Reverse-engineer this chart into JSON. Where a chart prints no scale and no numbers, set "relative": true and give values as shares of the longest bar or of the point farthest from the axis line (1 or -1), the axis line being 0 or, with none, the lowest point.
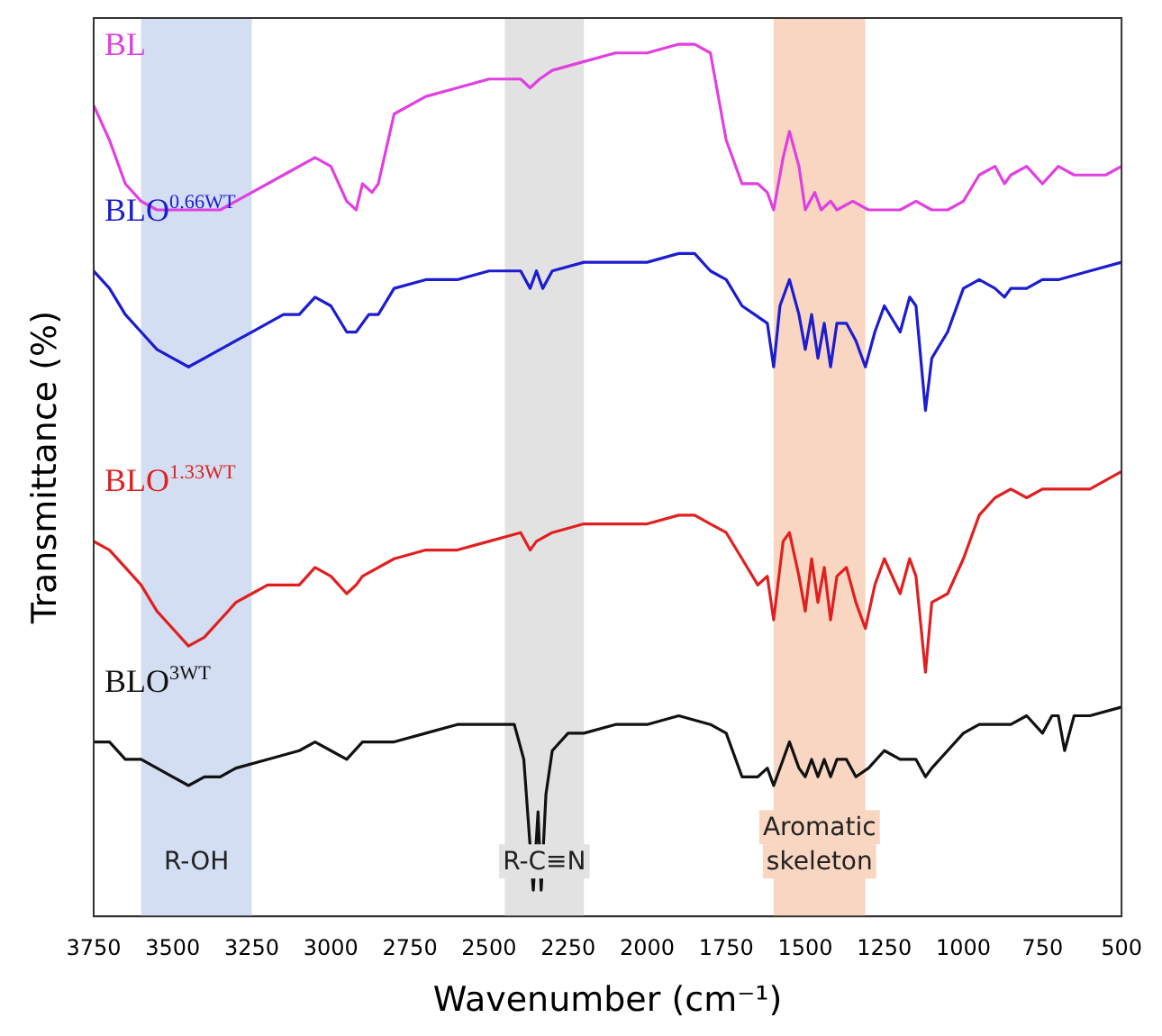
{
  "chart_data": {
    "type": "line",
    "xlabel": "Wavenumber (cm⁻¹)",
    "ylabel": "Transmittance (%)",
    "relative": true,
    "marker": "none",
    "xlim": [
      3750,
      500
    ],
    "xticks": [
      3750,
      3500,
      3250,
      3000,
      2750,
      2500,
      2250,
      2000,
      1750,
      1500,
      1250,
      1000,
      750,
      500
    ],
    "bands": [
      {
        "axis": "x",
        "from": 3600,
        "to": 3250,
        "label": "R-OH",
        "color": "#d3def2"
      },
      {
        "axis": "x",
        "from": 2450,
        "to": 2200,
        "label": "R-C≡N",
        "color": "#e2e2e2"
      },
      {
        "axis": "x",
        "from": 1600,
        "to": 1310,
        "label": "Aromatic skeleton",
        "color": "#f8d6c2"
      }
    ],
    "series": [
      {
        "name": "BL",
        "color": "#e040e0",
        "x": [
          3750,
          3700,
          3650,
          3600,
          3550,
          3450,
          3350,
          3250,
          3150,
          3050,
          3000,
          2950,
          2920,
          2900,
          2870,
          2850,
          2800,
          2700,
          2600,
          2500,
          2400,
          2370,
          2340,
          2300,
          2200,
          2100,
          2000,
          1900,
          1850,
          1800,
          1750,
          1700,
          1650,
          1620,
          1600,
          1570,
          1550,
          1520,
          1500,
          1470,
          1450,
          1420,
          1400,
          1350,
          1300,
          1200,
          1150,
          1100,
          1050,
          1000,
          950,
          900,
          870,
          850,
          800,
          750,
          700,
          650,
          600,
          550,
          500
        ],
        "values": [
          0.93,
          0.89,
          0.84,
          0.82,
          0.81,
          0.81,
          0.81,
          0.83,
          0.85,
          0.87,
          0.86,
          0.82,
          0.81,
          0.84,
          0.83,
          0.84,
          0.92,
          0.94,
          0.95,
          0.96,
          0.96,
          0.95,
          0.96,
          0.97,
          0.98,
          0.99,
          0.99,
          1.0,
          1.0,
          0.99,
          0.89,
          0.84,
          0.84,
          0.83,
          0.81,
          0.87,
          0.9,
          0.86,
          0.81,
          0.83,
          0.81,
          0.82,
          0.81,
          0.82,
          0.81,
          0.81,
          0.82,
          0.81,
          0.81,
          0.82,
          0.85,
          0.86,
          0.84,
          0.85,
          0.86,
          0.84,
          0.86,
          0.85,
          0.85,
          0.85,
          0.86
        ]
      },
      {
        "name": "BLO$^{0.66WT}$",
        "color": "#1c1cd0",
        "x": [
          3750,
          3700,
          3650,
          3600,
          3550,
          3500,
          3450,
          3400,
          3350,
          3300,
          3250,
          3200,
          3150,
          3100,
          3050,
          3000,
          2950,
          2920,
          2880,
          2850,
          2800,
          2700,
          2600,
          2500,
          2450,
          2400,
          2370,
          2350,
          2330,
          2300,
          2200,
          2100,
          2000,
          1900,
          1850,
          1800,
          1750,
          1700,
          1660,
          1620,
          1600,
          1580,
          1550,
          1520,
          1500,
          1480,
          1460,
          1440,
          1420,
          1400,
          1370,
          1340,
          1310,
          1280,
          1250,
          1200,
          1170,
          1150,
          1120,
          1100,
          1050,
          1000,
          950,
          900,
          870,
          850,
          800,
          750,
          700,
          600,
          500
        ],
        "values": [
          0.74,
          0.72,
          0.69,
          0.67,
          0.65,
          0.64,
          0.63,
          0.64,
          0.65,
          0.66,
          0.67,
          0.68,
          0.69,
          0.69,
          0.71,
          0.7,
          0.67,
          0.67,
          0.69,
          0.69,
          0.72,
          0.73,
          0.73,
          0.74,
          0.74,
          0.74,
          0.72,
          0.74,
          0.72,
          0.74,
          0.75,
          0.75,
          0.75,
          0.76,
          0.76,
          0.74,
          0.73,
          0.7,
          0.69,
          0.68,
          0.63,
          0.7,
          0.73,
          0.69,
          0.65,
          0.69,
          0.64,
          0.68,
          0.63,
          0.68,
          0.68,
          0.66,
          0.63,
          0.67,
          0.7,
          0.67,
          0.71,
          0.7,
          0.58,
          0.64,
          0.67,
          0.72,
          0.73,
          0.72,
          0.71,
          0.72,
          0.72,
          0.73,
          0.73,
          0.74,
          0.75
        ]
      },
      {
        "name": "BLO$^{1.33WT}$",
        "color": "#e02020",
        "x": [
          3750,
          3700,
          3650,
          3600,
          3550,
          3500,
          3450,
          3400,
          3350,
          3300,
          3250,
          3200,
          3100,
          3050,
          3000,
          2950,
          2920,
          2900,
          2800,
          2700,
          2600,
          2500,
          2400,
          2370,
          2350,
          2300,
          2200,
          2100,
          2000,
          1900,
          1850,
          1800,
          1750,
          1700,
          1650,
          1620,
          1600,
          1570,
          1550,
          1520,
          1500,
          1480,
          1460,
          1440,
          1420,
          1400,
          1370,
          1340,
          1310,
          1280,
          1250,
          1200,
          1170,
          1150,
          1120,
          1100,
          1050,
          1000,
          950,
          900,
          850,
          800,
          750,
          700,
          600,
          500
        ],
        "values": [
          0.43,
          0.42,
          0.4,
          0.38,
          0.35,
          0.33,
          0.31,
          0.32,
          0.34,
          0.36,
          0.37,
          0.38,
          0.38,
          0.4,
          0.39,
          0.37,
          0.38,
          0.39,
          0.41,
          0.42,
          0.42,
          0.43,
          0.44,
          0.42,
          0.43,
          0.44,
          0.45,
          0.45,
          0.45,
          0.46,
          0.46,
          0.45,
          0.44,
          0.41,
          0.38,
          0.39,
          0.34,
          0.43,
          0.44,
          0.39,
          0.35,
          0.41,
          0.36,
          0.4,
          0.34,
          0.39,
          0.4,
          0.36,
          0.33,
          0.38,
          0.41,
          0.37,
          0.41,
          0.39,
          0.28,
          0.36,
          0.37,
          0.41,
          0.46,
          0.48,
          0.49,
          0.48,
          0.49,
          0.49,
          0.49,
          0.51
        ]
      },
      {
        "name": "BLO$^{3WT}$",
        "color": "#111111",
        "x": [
          3750,
          3700,
          3650,
          3600,
          3550,
          3500,
          3450,
          3400,
          3350,
          3300,
          3200,
          3100,
          3050,
          3000,
          2950,
          2900,
          2800,
          2700,
          2600,
          2500,
          2420,
          2390,
          2370,
          2360,
          2345,
          2335,
          2320,
          2300,
          2250,
          2200,
          2100,
          2000,
          1900,
          1800,
          1750,
          1700,
          1650,
          1620,
          1600,
          1570,
          1550,
          1520,
          1500,
          1480,
          1460,
          1440,
          1420,
          1400,
          1370,
          1340,
          1300,
          1250,
          1200,
          1150,
          1120,
          1100,
          1050,
          1000,
          950,
          900,
          850,
          800,
          750,
          720,
          700,
          680,
          650,
          600,
          500
        ],
        "values": [
          0.2,
          0.2,
          0.18,
          0.18,
          0.17,
          0.16,
          0.15,
          0.16,
          0.16,
          0.17,
          0.18,
          0.19,
          0.2,
          0.19,
          0.18,
          0.2,
          0.2,
          0.21,
          0.22,
          0.22,
          0.22,
          0.18,
          0.08,
          0.03,
          0.12,
          0.03,
          0.14,
          0.19,
          0.21,
          0.21,
          0.22,
          0.22,
          0.23,
          0.22,
          0.21,
          0.16,
          0.16,
          0.17,
          0.15,
          0.18,
          0.2,
          0.17,
          0.16,
          0.18,
          0.16,
          0.18,
          0.16,
          0.18,
          0.18,
          0.16,
          0.17,
          0.19,
          0.18,
          0.18,
          0.16,
          0.17,
          0.19,
          0.21,
          0.22,
          0.22,
          0.22,
          0.23,
          0.21,
          0.23,
          0.23,
          0.19,
          0.23,
          0.23,
          0.24
        ]
      }
    ]
  }
}
